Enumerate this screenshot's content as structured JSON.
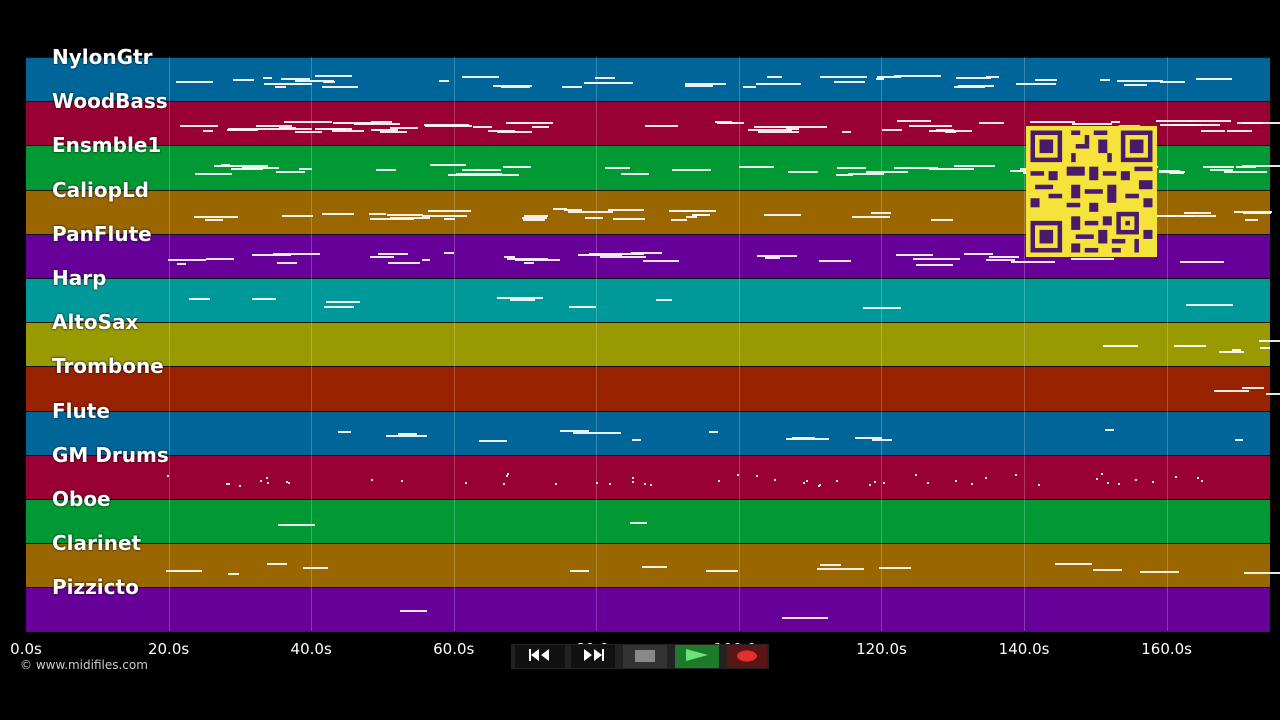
{
  "lanes": [
    {
      "name": "NylonGtr",
      "color": "#006699"
    },
    {
      "name": "WoodBass",
      "color": "#990033"
    },
    {
      "name": "Ensmble1",
      "color": "#009933"
    },
    {
      "name": "CaliopLd",
      "color": "#996600"
    },
    {
      "name": "PanFlute",
      "color": "#660099"
    },
    {
      "name": "Harp",
      "color": "#009999"
    },
    {
      "name": "AltoSax",
      "color": "#999900"
    },
    {
      "name": "Trombone",
      "color": "#992200"
    },
    {
      "name": "Flute",
      "color": "#006699"
    },
    {
      "name": "GM Drums",
      "color": "#990033"
    },
    {
      "name": "Oboe",
      "color": "#009933"
    },
    {
      "name": "Clarinet",
      "color": "#996600"
    },
    {
      "name": "Pizzicto",
      "color": "#660099"
    }
  ],
  "timeline": {
    "ticks": [
      "0.0s",
      "20.0s",
      "40.0s",
      "60.0s",
      "80.0s",
      "100.0s",
      "120.0s",
      "140.0s",
      "160.0s"
    ],
    "max_seconds": 174.5
  },
  "copyright": "© www.midifiles.com",
  "transport": {
    "rewind_icon": "rewind-icon",
    "fastforward_icon": "fast-forward-icon",
    "stop_icon": "stop-icon",
    "play_icon": "play-icon",
    "record_icon": "record-icon"
  }
}
